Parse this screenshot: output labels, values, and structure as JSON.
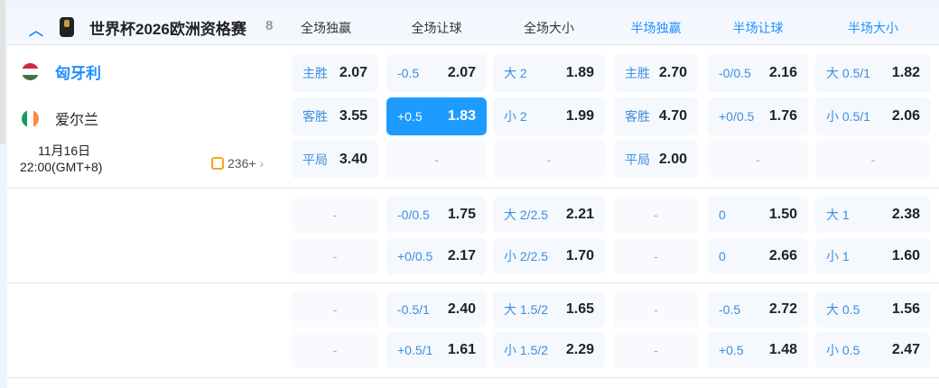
{
  "league": {
    "name": "世界杯2026欧洲资格赛",
    "count": "8"
  },
  "columns": [
    "全场独赢",
    "全场让球",
    "全场大小",
    "半场独赢",
    "半场让球",
    "半场大小"
  ],
  "match": {
    "home": "匈牙利",
    "away": "爱尔兰",
    "date": "11月16日",
    "time": "22:00(GMT+8)",
    "more": "236+"
  },
  "rows": [
    [
      {
        "l": "主胜",
        "v": "2.07"
      },
      {
        "l": "-0.5",
        "v": "2.07"
      },
      {
        "l": "大 2",
        "v": "1.89"
      },
      {
        "l": "主胜",
        "v": "2.70"
      },
      {
        "l": "-0/0.5",
        "v": "2.16"
      },
      {
        "l": "大 0.5/1",
        "v": "1.82"
      }
    ],
    [
      {
        "l": "客胜",
        "v": "3.55"
      },
      {
        "l": "+0.5",
        "v": "1.83",
        "selected": true
      },
      {
        "l": "小 2",
        "v": "1.99"
      },
      {
        "l": "客胜",
        "v": "4.70"
      },
      {
        "l": "+0/0.5",
        "v": "1.76"
      },
      {
        "l": "小 0.5/1",
        "v": "2.06"
      }
    ],
    [
      {
        "l": "平局",
        "v": "3.40"
      },
      {
        "empty": "-"
      },
      {
        "empty": "-"
      },
      {
        "l": "平局",
        "v": "2.00"
      },
      {
        "empty": "-"
      },
      {
        "empty": "-"
      }
    ],
    [
      {
        "empty": "-"
      },
      {
        "l": "-0/0.5",
        "v": "1.75"
      },
      {
        "l": "大 2/2.5",
        "v": "2.21"
      },
      {
        "empty": "-"
      },
      {
        "l": "0",
        "v": "1.50"
      },
      {
        "l": "大 1",
        "v": "2.38"
      }
    ],
    [
      {
        "empty": "-"
      },
      {
        "l": "+0/0.5",
        "v": "2.17"
      },
      {
        "l": "小 2/2.5",
        "v": "1.70"
      },
      {
        "empty": "-"
      },
      {
        "l": "0",
        "v": "2.66"
      },
      {
        "l": "小 1",
        "v": "1.60"
      }
    ],
    [
      {
        "empty": "-"
      },
      {
        "l": "-0.5/1",
        "v": "2.40"
      },
      {
        "l": "大 1.5/2",
        "v": "1.65"
      },
      {
        "empty": "-"
      },
      {
        "l": "-0.5",
        "v": "2.72"
      },
      {
        "l": "大 0.5",
        "v": "1.56"
      }
    ],
    [
      {
        "empty": "-"
      },
      {
        "l": "+0.5/1",
        "v": "1.61"
      },
      {
        "l": "小 1.5/2",
        "v": "2.29"
      },
      {
        "empty": "-"
      },
      {
        "l": "+0.5",
        "v": "1.48"
      },
      {
        "l": "小 0.5",
        "v": "2.47"
      }
    ]
  ],
  "colors": {
    "accent": "#1e9bff",
    "label": "#3b8fe0"
  }
}
